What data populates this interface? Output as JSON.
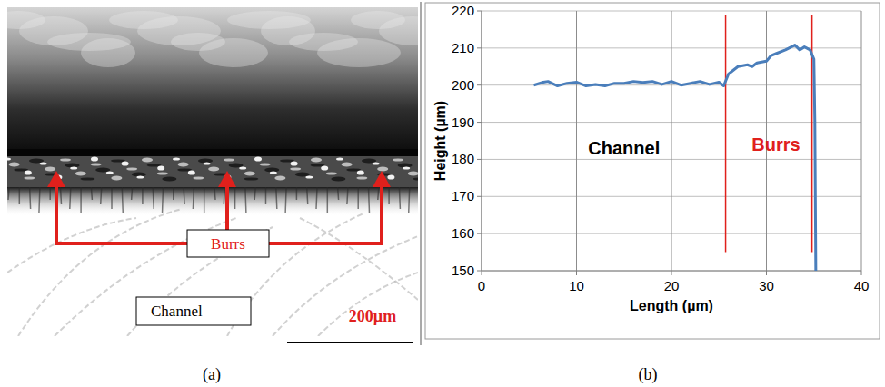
{
  "panel_labels": [
    "(a)",
    "(b)"
  ],
  "image_panel": {
    "burrs_label": "Burrs",
    "channel_label": "Channel",
    "scale_bar_label": "200µm"
  },
  "chart_data": {
    "type": "line",
    "x_label": "Length (µm)",
    "y_label": "Height (µm)",
    "x": [
      5.5,
      6.5,
      7,
      8,
      9,
      10,
      11,
      12,
      13,
      14,
      15,
      16,
      17,
      18,
      19,
      20,
      21,
      22,
      23,
      24,
      25,
      25.5,
      26,
      27,
      28,
      28.5,
      29,
      30,
      30.5,
      31,
      32,
      33,
      33.5,
      34,
      34.6,
      35,
      35.1,
      35.2
    ],
    "series": [
      {
        "name": "Height",
        "color": "#4a7ebb",
        "values": [
          200,
          200.8,
          201,
          199.8,
          200.5,
          200.8,
          199.8,
          200.2,
          199.8,
          200.5,
          200.5,
          201,
          200.7,
          201,
          200.2,
          201,
          200,
          200.5,
          201,
          200.2,
          200.8,
          199.8,
          203,
          205,
          205.5,
          205,
          206,
          206.5,
          208,
          208.5,
          209.5,
          210.8,
          209.5,
          210.3,
          209.5,
          207,
          190,
          150
        ]
      }
    ],
    "xlim": [
      0,
      40
    ],
    "xticks": [
      0,
      10,
      20,
      30,
      40
    ],
    "ylim": [
      150,
      220
    ],
    "yticks": [
      150,
      160,
      170,
      180,
      190,
      200,
      210,
      220
    ],
    "grid": true,
    "annotations": [
      {
        "text": "Channel",
        "x": 15,
        "y": 183,
        "color": "#000000"
      },
      {
        "text": "Burrs",
        "x": 31,
        "y": 184,
        "color": "#e0201c"
      }
    ],
    "vlines": [
      {
        "x": 25.7,
        "ymin": 155,
        "ymax": 219,
        "color": "#e0201c"
      },
      {
        "x": 34.8,
        "ymin": 155,
        "ymax": 219,
        "color": "#e0201c"
      }
    ]
  }
}
